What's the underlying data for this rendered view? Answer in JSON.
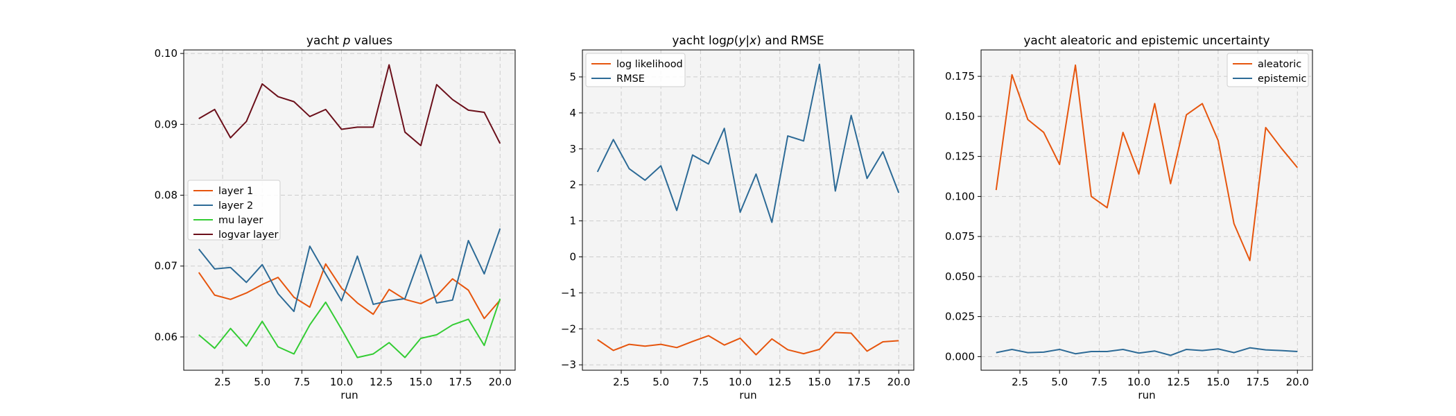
{
  "chart_data": [
    {
      "type": "line",
      "title": "yacht p values",
      "title_parts": [
        "yacht ",
        "p",
        " values"
      ],
      "xlabel": "run",
      "ylabel": "",
      "xlim": [
        0.05,
        20.95
      ],
      "ylim": [
        0.0553,
        0.1005
      ],
      "xticks": [
        2.5,
        5.0,
        7.5,
        10.0,
        12.5,
        15.0,
        17.5,
        20.0
      ],
      "xtick_labels": [
        "2.5",
        "5.0",
        "7.5",
        "10.0",
        "12.5",
        "15.0",
        "17.5",
        "20.0"
      ],
      "yticks": [
        0.06,
        0.07,
        0.08,
        0.09,
        0.1
      ],
      "ytick_labels": [
        "0.06",
        "0.07",
        "0.08",
        "0.09",
        "0.10"
      ],
      "grid": true,
      "legend_position": "center-left",
      "x": [
        1,
        2,
        3,
        4,
        5,
        6,
        7,
        8,
        9,
        10,
        11,
        12,
        13,
        14,
        15,
        16,
        17,
        18,
        19,
        20
      ],
      "series": [
        {
          "name": "layer 1",
          "color": "#e6550d",
          "values": [
            0.0691,
            0.0659,
            0.0653,
            0.0662,
            0.0674,
            0.0684,
            0.0656,
            0.0642,
            0.0703,
            0.0669,
            0.0648,
            0.0632,
            0.0667,
            0.0653,
            0.0647,
            0.0658,
            0.0682,
            0.0666,
            0.0626,
            0.0652
          ]
        },
        {
          "name": "layer 2",
          "color": "#2c6a96",
          "values": [
            0.0724,
            0.0696,
            0.0698,
            0.0677,
            0.0702,
            0.0661,
            0.0636,
            0.0728,
            0.0689,
            0.0651,
            0.0714,
            0.0646,
            0.0651,
            0.0654,
            0.0716,
            0.0648,
            0.0652,
            0.0736,
            0.0689,
            0.0753
          ]
        },
        {
          "name": "mu layer",
          "color": "#33cc33",
          "values": [
            0.0603,
            0.0584,
            0.0612,
            0.0587,
            0.0622,
            0.0586,
            0.0576,
            0.0617,
            0.0649,
            0.0611,
            0.0571,
            0.0576,
            0.0592,
            0.0571,
            0.0598,
            0.0603,
            0.0617,
            0.0625,
            0.0588,
            0.0654
          ]
        },
        {
          "name": "logvar layer",
          "color": "#6b0f1a",
          "values": [
            0.0908,
            0.0921,
            0.0881,
            0.0904,
            0.0957,
            0.0939,
            0.0932,
            0.0911,
            0.0921,
            0.0893,
            0.0896,
            0.0896,
            0.0984,
            0.0889,
            0.087,
            0.0956,
            0.0935,
            0.092,
            0.0917,
            0.0873
          ]
        }
      ]
    },
    {
      "type": "line",
      "title": "yacht logp(y|x) and RMSE",
      "title_parts": [
        "yacht log",
        "p",
        "(",
        "y",
        "|",
        "x",
        ") and RMSE"
      ],
      "xlabel": "run",
      "ylabel": "",
      "xlim": [
        0.05,
        20.95
      ],
      "ylim": [
        -3.15,
        5.75
      ],
      "xticks": [
        2.5,
        5.0,
        7.5,
        10.0,
        12.5,
        15.0,
        17.5,
        20.0
      ],
      "xtick_labels": [
        "2.5",
        "5.0",
        "7.5",
        "10.0",
        "12.5",
        "15.0",
        "17.5",
        "20.0"
      ],
      "yticks": [
        -3,
        -2,
        -1,
        0,
        1,
        2,
        3,
        4,
        5
      ],
      "ytick_labels": [
        "−3",
        "−2",
        "−1",
        "0",
        "1",
        "2",
        "3",
        "4",
        "5"
      ],
      "grid": true,
      "legend_position": "top-left",
      "x": [
        1,
        2,
        3,
        4,
        5,
        6,
        7,
        8,
        9,
        10,
        11,
        12,
        13,
        14,
        15,
        16,
        17,
        18,
        19,
        20
      ],
      "series": [
        {
          "name": "log likelihood",
          "color": "#e6550d",
          "values": [
            -2.3,
            -2.6,
            -2.43,
            -2.48,
            -2.43,
            -2.52,
            -2.35,
            -2.19,
            -2.45,
            -2.26,
            -2.72,
            -2.28,
            -2.58,
            -2.69,
            -2.57,
            -2.1,
            -2.12,
            -2.62,
            -2.36,
            -2.33
          ]
        },
        {
          "name": "RMSE",
          "color": "#2c6a96",
          "values": [
            2.36,
            3.26,
            2.45,
            2.13,
            2.53,
            1.29,
            2.83,
            2.58,
            3.57,
            1.24,
            2.3,
            0.96,
            3.36,
            3.22,
            5.35,
            1.83,
            3.93,
            2.18,
            2.92,
            1.78
          ]
        }
      ]
    },
    {
      "type": "line",
      "title": "yacht aleatoric and epistemic uncertainty",
      "xlabel": "run",
      "ylabel": "",
      "xlim": [
        0.05,
        20.95
      ],
      "ylim": [
        -0.0085,
        0.1915
      ],
      "xticks": [
        2.5,
        5.0,
        7.5,
        10.0,
        12.5,
        15.0,
        17.5,
        20.0
      ],
      "xtick_labels": [
        "2.5",
        "5.0",
        "7.5",
        "10.0",
        "12.5",
        "15.0",
        "17.5",
        "20.0"
      ],
      "yticks": [
        0.0,
        0.025,
        0.05,
        0.075,
        0.1,
        0.125,
        0.15,
        0.175
      ],
      "ytick_labels": [
        "0.000",
        "0.025",
        "0.050",
        "0.075",
        "0.100",
        "0.125",
        "0.150",
        "0.175"
      ],
      "grid": true,
      "legend_position": "top-right",
      "x": [
        1,
        2,
        3,
        4,
        5,
        6,
        7,
        8,
        9,
        10,
        11,
        12,
        13,
        14,
        15,
        16,
        17,
        18,
        19,
        20
      ],
      "series": [
        {
          "name": "aleatoric",
          "color": "#e6550d",
          "values": [
            0.104,
            0.176,
            0.148,
            0.14,
            0.12,
            0.182,
            0.1,
            0.093,
            0.14,
            0.114,
            0.158,
            0.108,
            0.151,
            0.158,
            0.135,
            0.083,
            0.06,
            0.143,
            0.13,
            0.118
          ]
        },
        {
          "name": "epistemic",
          "color": "#2c6a96",
          "values": [
            0.0025,
            0.0045,
            0.0025,
            0.0028,
            0.0045,
            0.0018,
            0.0032,
            0.0032,
            0.0045,
            0.0022,
            0.0035,
            0.0008,
            0.0045,
            0.0038,
            0.0048,
            0.0025,
            0.0055,
            0.0042,
            0.0038,
            0.0032
          ]
        }
      ]
    }
  ]
}
